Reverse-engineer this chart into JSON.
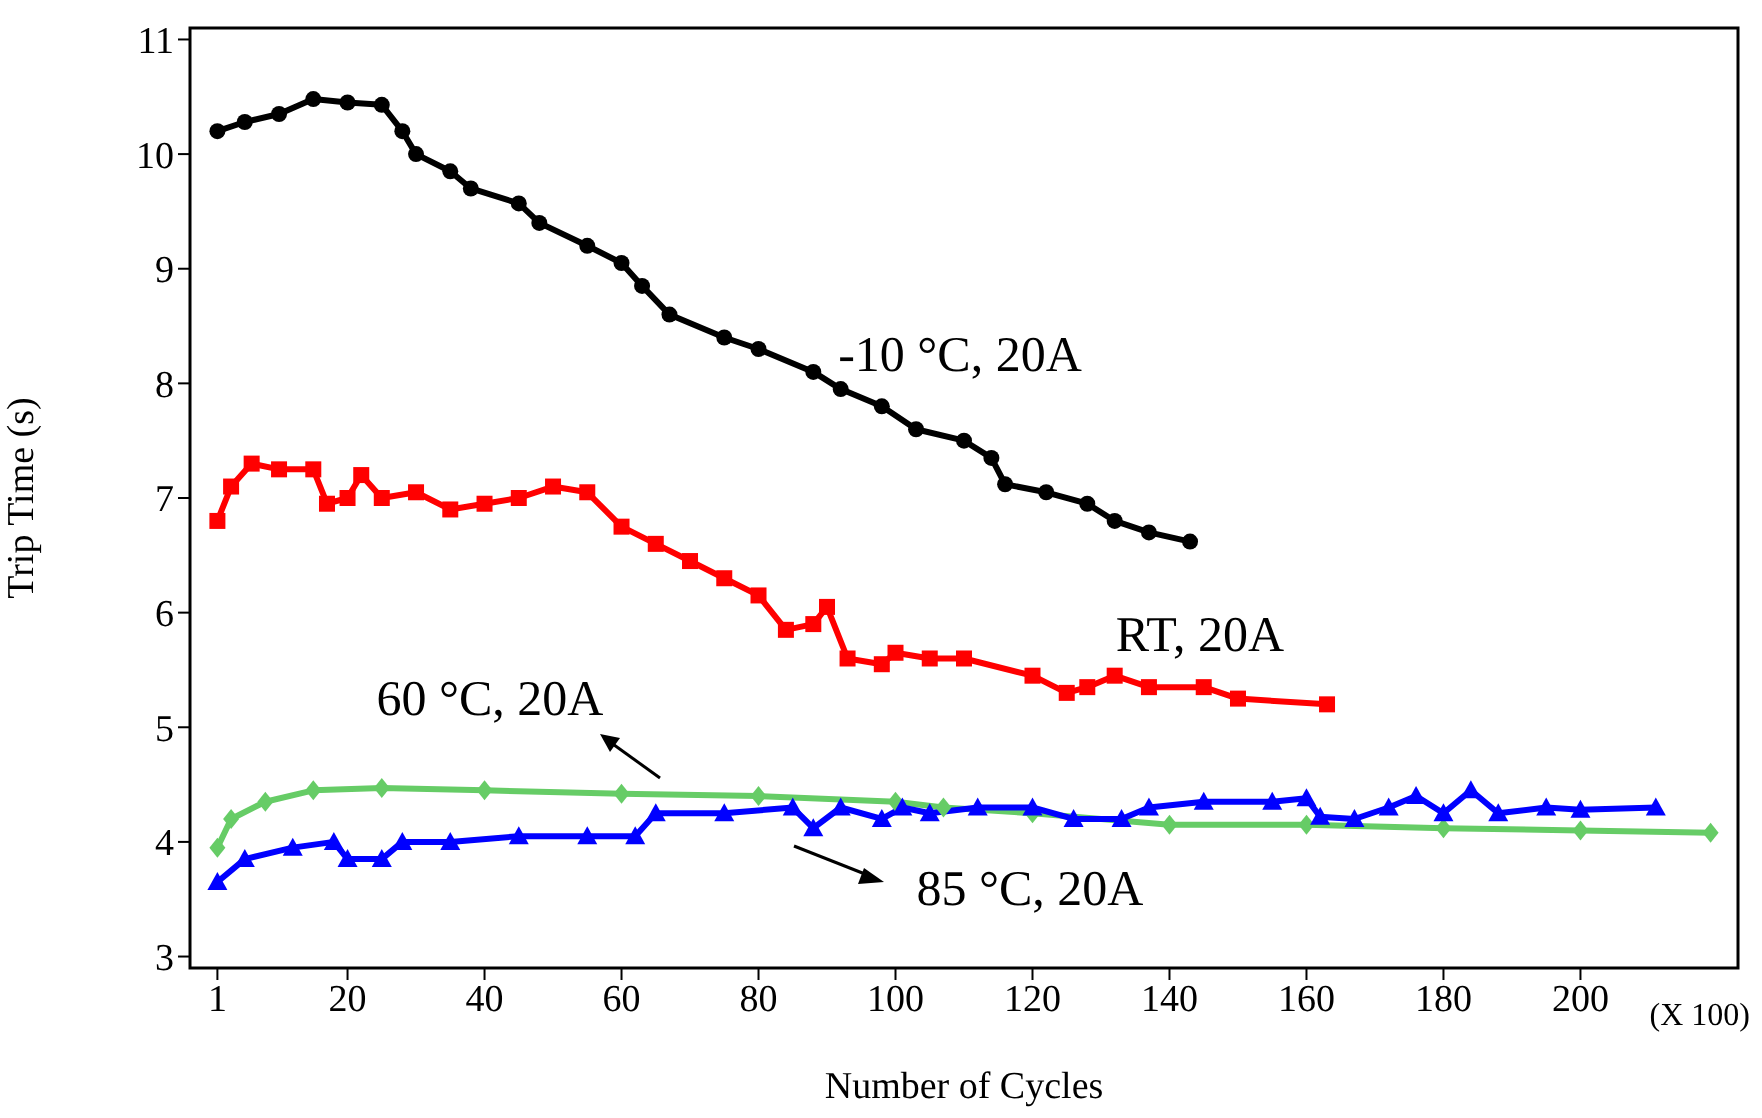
{
  "chart_data": {
    "type": "line",
    "xlabel": "Number of Cycles",
    "ylabel": "Trip Time (s)",
    "xlim": [
      -3,
      223
    ],
    "ylim": [
      2.9,
      11.1
    ],
    "xticks": [
      1,
      20,
      40,
      60,
      80,
      100,
      120,
      140,
      160,
      180,
      200
    ],
    "yticks": [
      3,
      4,
      5,
      6,
      7,
      8,
      9,
      10,
      11
    ],
    "line_style": "solid",
    "annotations": [
      "-10 °C, 20A",
      "RT, 20A",
      "60 °C, 20A",
      "85 °C, 20A",
      "(X 100)"
    ],
    "series": [
      {
        "color": "#000000",
        "marker": "circle",
        "x": [
          1,
          5,
          10,
          15,
          20,
          25,
          28,
          30,
          35,
          38,
          45,
          48,
          55,
          60,
          63,
          67,
          75,
          80,
          88,
          92,
          98,
          103,
          110,
          114,
          116,
          122,
          128,
          132,
          137,
          143
        ],
        "values": [
          10.2,
          10.28,
          10.35,
          10.48,
          10.45,
          10.43,
          10.2,
          10.0,
          9.85,
          9.7,
          9.57,
          9.4,
          9.2,
          9.05,
          8.85,
          8.6,
          8.4,
          8.3,
          8.1,
          7.95,
          7.8,
          7.6,
          7.5,
          7.35,
          7.12,
          7.05,
          6.95,
          6.8,
          6.7,
          6.62
        ]
      },
      {
        "color": "#ff0000",
        "marker": "square",
        "x": [
          1,
          3,
          6,
          10,
          15,
          17,
          20,
          22,
          25,
          30,
          35,
          40,
          45,
          50,
          55,
          60,
          65,
          70,
          75,
          80,
          84,
          88,
          90,
          93,
          98,
          100,
          105,
          110,
          120,
          125,
          128,
          132,
          137,
          145,
          150,
          163
        ],
        "values": [
          6.8,
          7.1,
          7.3,
          7.25,
          7.25,
          6.95,
          7.0,
          7.2,
          7.0,
          7.05,
          6.9,
          6.95,
          7.0,
          7.1,
          7.05,
          6.75,
          6.6,
          6.45,
          6.3,
          6.15,
          5.85,
          5.9,
          6.05,
          5.6,
          5.55,
          5.65,
          5.6,
          5.6,
          5.45,
          5.3,
          5.35,
          5.45,
          5.35,
          5.35,
          5.25,
          5.2
        ]
      },
      {
        "color": "#66cc66",
        "marker": "diamond",
        "x": [
          1,
          3,
          8,
          15,
          25,
          40,
          60,
          80,
          100,
          107,
          120,
          140,
          160,
          180,
          200,
          219
        ],
        "values": [
          3.95,
          4.2,
          4.35,
          4.45,
          4.47,
          4.45,
          4.42,
          4.4,
          4.35,
          4.3,
          4.25,
          4.15,
          4.15,
          4.12,
          4.1,
          4.08
        ]
      },
      {
        "color": "#0000ff",
        "marker": "triangle",
        "x": [
          1,
          5,
          12,
          18,
          20,
          25,
          28,
          35,
          45,
          55,
          62,
          65,
          75,
          85,
          88,
          92,
          98,
          101,
          105,
          112,
          120,
          126,
          133,
          137,
          145,
          155,
          160,
          162,
          167,
          172,
          176,
          180,
          184,
          188,
          195,
          200,
          211
        ],
        "values": [
          3.65,
          3.85,
          3.95,
          4.0,
          3.85,
          3.85,
          4.0,
          4.0,
          4.05,
          4.05,
          4.05,
          4.25,
          4.25,
          4.3,
          4.12,
          4.3,
          4.2,
          4.3,
          4.25,
          4.3,
          4.3,
          4.2,
          4.2,
          4.3,
          4.35,
          4.35,
          4.38,
          4.22,
          4.2,
          4.3,
          4.4,
          4.25,
          4.45,
          4.25,
          4.3,
          4.28,
          4.3
        ]
      }
    ]
  }
}
